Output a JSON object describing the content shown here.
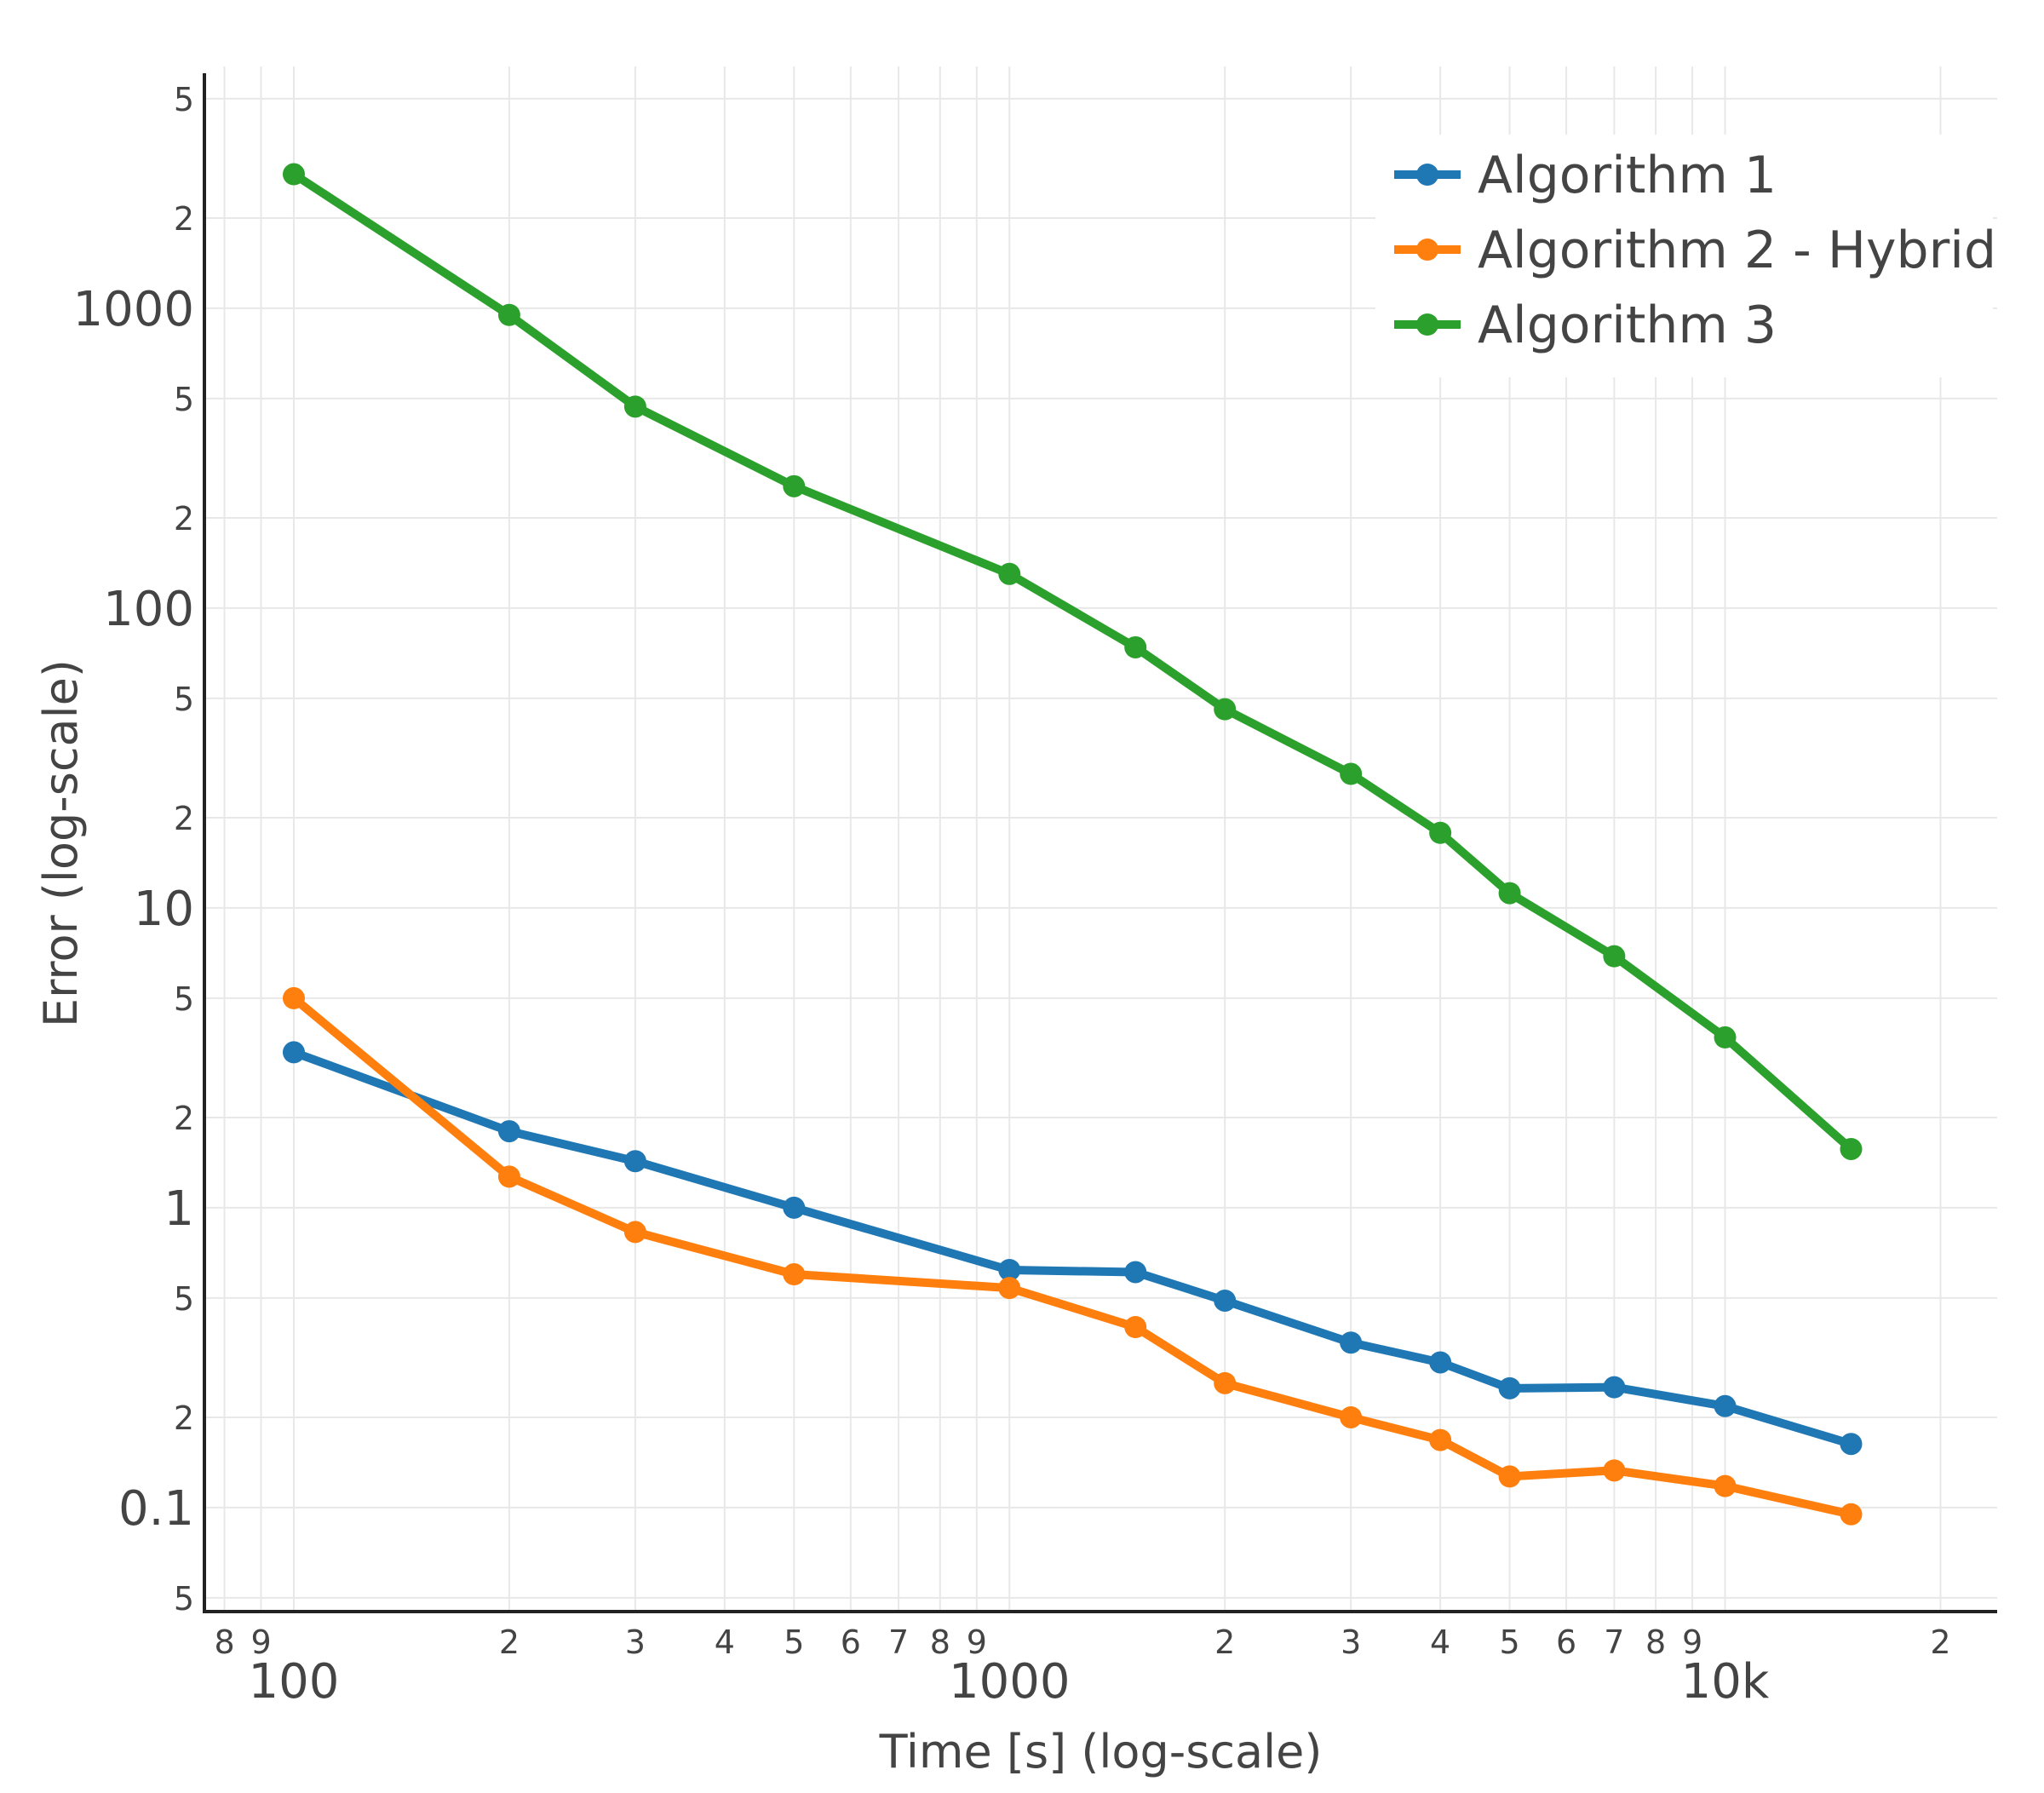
{
  "chart_data": {
    "type": "line",
    "xlabel": "Time [s] (log-scale)",
    "ylabel": "Error (log-scale)",
    "x_scale": "log",
    "y_scale": "log",
    "xlim": [
      75,
      24000
    ],
    "ylim": [
      0.045,
      6000
    ],
    "grid": true,
    "legend_position": "top-right",
    "x_ticks": {
      "major": [
        {
          "value": 100,
          "label": "100"
        },
        {
          "value": 1000,
          "label": "1000"
        },
        {
          "value": 10000,
          "label": "10k"
        }
      ],
      "minor": [
        {
          "value": 80,
          "label": "8"
        },
        {
          "value": 90,
          "label": "9"
        },
        {
          "value": 200,
          "label": "2"
        },
        {
          "value": 300,
          "label": "3"
        },
        {
          "value": 400,
          "label": "4"
        },
        {
          "value": 500,
          "label": "5"
        },
        {
          "value": 600,
          "label": "6"
        },
        {
          "value": 700,
          "label": "7"
        },
        {
          "value": 800,
          "label": "8"
        },
        {
          "value": 900,
          "label": "9"
        },
        {
          "value": 2000,
          "label": "2"
        },
        {
          "value": 3000,
          "label": "3"
        },
        {
          "value": 4000,
          "label": "4"
        },
        {
          "value": 5000,
          "label": "5"
        },
        {
          "value": 6000,
          "label": "6"
        },
        {
          "value": 7000,
          "label": "7"
        },
        {
          "value": 8000,
          "label": "8"
        },
        {
          "value": 9000,
          "label": "9"
        },
        {
          "value": 20000,
          "label": "2"
        }
      ]
    },
    "y_ticks": {
      "major": [
        {
          "value": 0.1,
          "label": "0.1"
        },
        {
          "value": 1,
          "label": "1"
        },
        {
          "value": 10,
          "label": "10"
        },
        {
          "value": 100,
          "label": "100"
        },
        {
          "value": 1000,
          "label": "1000"
        }
      ],
      "minor": [
        {
          "value": 0.05,
          "label": "5"
        },
        {
          "value": 0.2,
          "label": "2"
        },
        {
          "value": 0.5,
          "label": "5"
        },
        {
          "value": 2,
          "label": "2"
        },
        {
          "value": 5,
          "label": "5"
        },
        {
          "value": 20,
          "label": "2"
        },
        {
          "value": 50,
          "label": "5"
        },
        {
          "value": 200,
          "label": "2"
        },
        {
          "value": 500,
          "label": "5"
        },
        {
          "value": 2000,
          "label": "2"
        },
        {
          "value": 5000,
          "label": "5"
        }
      ]
    },
    "x": [
      100,
      200,
      300,
      500,
      1000,
      1500,
      2000,
      3000,
      4000,
      5000,
      7000,
      10000,
      15000
    ],
    "series": [
      {
        "name": "Algorithm 1",
        "color": "#1f77b4",
        "values": [
          3.3,
          1.8,
          1.43,
          1.0,
          0.62,
          0.61,
          0.49,
          0.355,
          0.305,
          0.25,
          0.252,
          0.218,
          0.163
        ]
      },
      {
        "name": "Algorithm 2 - Hybrid",
        "color": "#ff7f0e",
        "values": [
          5.0,
          1.27,
          0.83,
          0.6,
          0.54,
          0.4,
          0.26,
          0.2,
          0.168,
          0.127,
          0.133,
          0.118,
          0.095
        ]
      },
      {
        "name": "Algorithm 3",
        "color": "#2ca02c",
        "values": [
          2800,
          950,
          470,
          255,
          130,
          74,
          46,
          28,
          17.8,
          11.2,
          6.9,
          3.7,
          1.57
        ]
      }
    ]
  }
}
